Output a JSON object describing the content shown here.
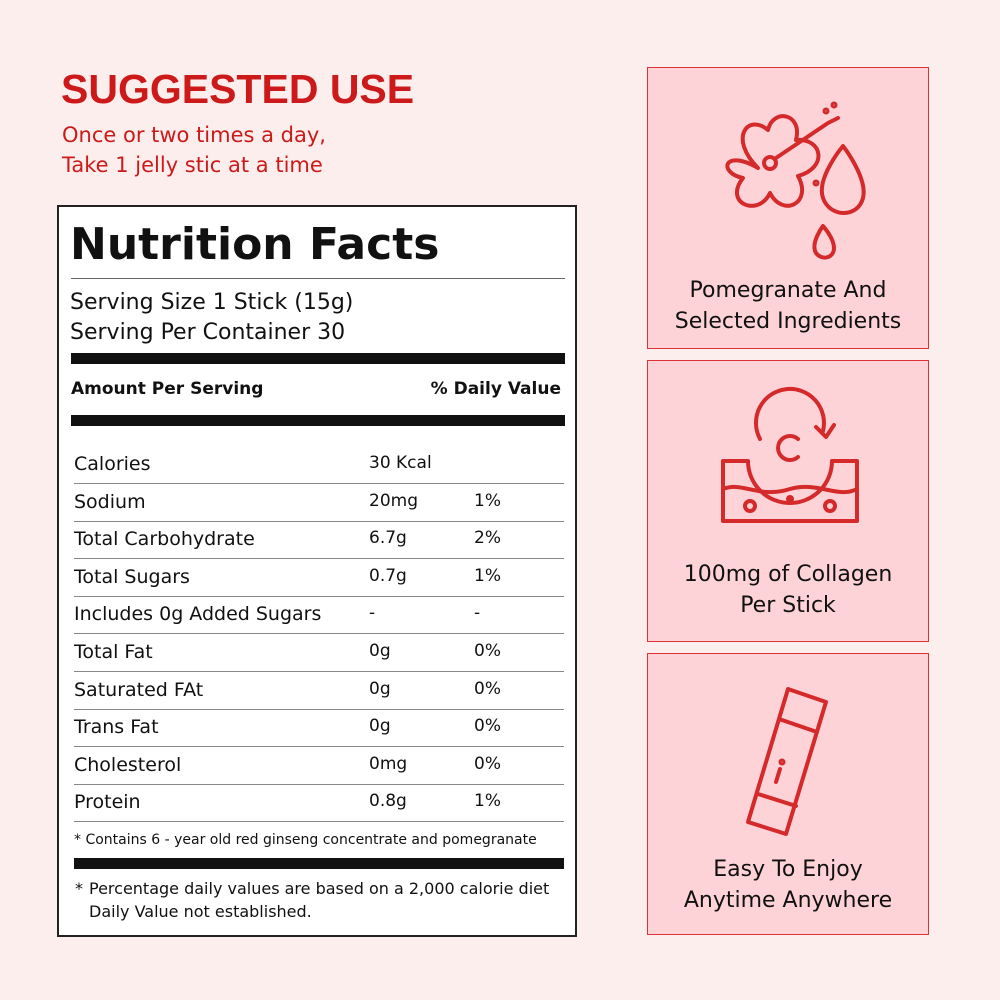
{
  "suggested_use": {
    "title": "SUGGESTED USE",
    "lines": [
      "Once or two times a day,",
      "Take 1 jelly stic at a time"
    ]
  },
  "nutrition": {
    "title": "Nutrition Facts",
    "serving_size": "Serving Size 1 Stick (15g)",
    "servings": "Serving Per Container 30",
    "amount_header": "Amount Per Serving",
    "dv_header": "% Daily Value",
    "rows": [
      [
        "Calories",
        "30 Kcal"
      ],
      [
        "Sodium",
        "20mg",
        "1%"
      ],
      [
        "Total Carbohydrate",
        "6.7g",
        "2%"
      ],
      [
        "Total Sugars",
        "0.7g",
        "1%"
      ],
      [
        "Includes 0g Added Sugars",
        "-",
        "-"
      ],
      [
        "Total Fat",
        "0g",
        "0%"
      ],
      [
        "Saturated FAt",
        "0g",
        "0%"
      ],
      [
        "Trans Fat",
        "0g",
        "0%"
      ],
      [
        "Cholesterol",
        "0mg",
        "0%"
      ],
      [
        "Protein",
        "0.8g",
        "1%"
      ]
    ],
    "ingredient_note": "* Contains 6 - year old red ginseng concentrate and pomegranate",
    "footnote_mark": "*",
    "footnote_lines": [
      "Percentage daily values are based on a 2,000 calorie diet",
      "Daily Value not established."
    ]
  },
  "features": [
    {
      "lines": [
        "Pomegranate And",
        "Selected Ingredients"
      ]
    },
    {
      "lines": [
        "100mg of Collagen",
        "Per Stick"
      ]
    },
    {
      "lines": [
        "Easy To Enjoy",
        "Anytime Anywhere"
      ]
    }
  ]
}
